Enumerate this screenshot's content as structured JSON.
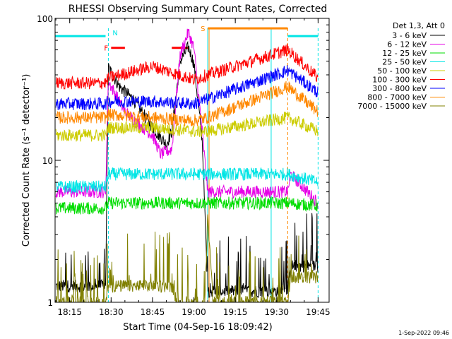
{
  "chart_data": {
    "type": "line",
    "title": "RHESSI Observing Summary Count Rates, Corrected",
    "xlabel": "Start Time (04-Sep-16 18:09:42)",
    "ylabel": "Corrected Count Rate (s⁻¹ detector⁻¹)",
    "yscale": "log",
    "ylim": [
      1,
      100
    ],
    "xlim": [
      "18:09:42",
      "19:49:00"
    ],
    "x_ticks": [
      "18:15",
      "18:30",
      "18:45",
      "19:00",
      "19:15",
      "19:30",
      "19:45"
    ],
    "y_ticks": [
      "1",
      "10",
      "100"
    ],
    "legend_header": "Det 1,3, Att 0",
    "legend_position": "top-right",
    "footer": "1-Sep-2022 09:46",
    "series": [
      {
        "name": "3 - 6 keV",
        "color": "#000000",
        "points": [
          [
            "18:10",
            1.3
          ],
          [
            "18:28",
            1.3
          ],
          [
            "18:29",
            45
          ],
          [
            "18:33",
            33
          ],
          [
            "18:38",
            27
          ],
          [
            "18:45",
            17
          ],
          [
            "18:50",
            13
          ],
          [
            "18:52",
            16
          ],
          [
            "18:55",
            50
          ],
          [
            "18:58",
            63
          ],
          [
            "19:00",
            48
          ],
          [
            "19:03",
            14
          ],
          [
            "19:05",
            1.2
          ],
          [
            "19:34",
            1.2
          ],
          [
            "19:35",
            1.8
          ],
          [
            "19:45",
            1.8
          ]
        ]
      },
      {
        "name": "6 - 12 keV",
        "color": "#e600e6",
        "points": [
          [
            "18:10",
            6
          ],
          [
            "18:28",
            6
          ],
          [
            "18:29",
            36
          ],
          [
            "18:35",
            22
          ],
          [
            "18:40",
            18
          ],
          [
            "18:45",
            15
          ],
          [
            "18:48",
            11
          ],
          [
            "18:52",
            12
          ],
          [
            "18:55",
            55
          ],
          [
            "18:58",
            80
          ],
          [
            "19:00",
            62
          ],
          [
            "19:03",
            16
          ],
          [
            "19:05",
            6
          ],
          [
            "19:34",
            6
          ],
          [
            "19:35",
            8
          ],
          [
            "19:45",
            5
          ]
        ]
      },
      {
        "name": "12 - 25 keV",
        "color": "#00dd00",
        "points": [
          [
            "18:10",
            4.6
          ],
          [
            "18:28",
            4.6
          ],
          [
            "18:29",
            5
          ],
          [
            "18:45",
            5
          ],
          [
            "19:00",
            5
          ],
          [
            "19:05",
            5
          ],
          [
            "19:34",
            5
          ],
          [
            "19:45",
            4.8
          ]
        ]
      },
      {
        "name": "25 - 50 keV",
        "color": "#00e5e5",
        "points": [
          [
            "18:10",
            6.5
          ],
          [
            "18:28",
            6.5
          ],
          [
            "18:29",
            8
          ],
          [
            "18:45",
            8
          ],
          [
            "19:00",
            8
          ],
          [
            "19:05",
            8
          ],
          [
            "19:34",
            8
          ],
          [
            "19:45",
            7
          ]
        ]
      },
      {
        "name": "50 - 100 keV",
        "color": "#cccc00",
        "points": [
          [
            "18:10",
            15
          ],
          [
            "18:28",
            15
          ],
          [
            "18:29",
            17
          ],
          [
            "18:45",
            17
          ],
          [
            "19:00",
            16
          ],
          [
            "19:05",
            16
          ],
          [
            "19:34",
            20
          ],
          [
            "19:45",
            16
          ]
        ]
      },
      {
        "name": "100 - 300 keV",
        "color": "#ff0000",
        "points": [
          [
            "18:10",
            35
          ],
          [
            "18:28",
            35
          ],
          [
            "18:29",
            38
          ],
          [
            "18:45",
            46
          ],
          [
            "19:00",
            37
          ],
          [
            "19:05",
            40
          ],
          [
            "19:34",
            60
          ],
          [
            "19:45",
            38
          ]
        ]
      },
      {
        "name": "300 - 800 keV",
        "color": "#0000ff",
        "points": [
          [
            "18:10",
            25
          ],
          [
            "18:28",
            25
          ],
          [
            "18:29",
            26
          ],
          [
            "18:45",
            26
          ],
          [
            "19:00",
            25
          ],
          [
            "19:05",
            27
          ],
          [
            "19:34",
            43
          ],
          [
            "19:45",
            30
          ]
        ]
      },
      {
        "name": "800 - 7000 keV",
        "color": "#ff8800",
        "points": [
          [
            "18:10",
            20
          ],
          [
            "18:28",
            20
          ],
          [
            "18:29",
            21
          ],
          [
            "18:45",
            20
          ],
          [
            "19:00",
            19
          ],
          [
            "19:05",
            20
          ],
          [
            "19:34",
            33
          ],
          [
            "19:45",
            22
          ]
        ]
      },
      {
        "name": "7000 - 15000 keV",
        "color": "#808000",
        "points": [
          [
            "18:10",
            1
          ],
          [
            "18:28",
            1
          ],
          [
            "18:29",
            1.3
          ],
          [
            "18:52",
            1.3
          ],
          [
            "18:54",
            1
          ],
          [
            "19:04",
            1
          ],
          [
            "19:05",
            4
          ],
          [
            "19:07",
            1
          ],
          [
            "19:34",
            1
          ],
          [
            "19:35",
            1.5
          ],
          [
            "19:45",
            1.5
          ]
        ]
      }
    ],
    "flags": [
      {
        "label": "",
        "color": "#00e5e5",
        "y": 75,
        "start": "18:09:42",
        "end": "18:28:00"
      },
      {
        "label": "",
        "color": "#00e5e5",
        "y": 75,
        "start": "19:34:00",
        "end": "19:45:00"
      },
      {
        "label": "F",
        "color": "#ff0000",
        "y": 62,
        "start": "18:30:00",
        "end": "18:35:00"
      },
      {
        "label": "",
        "color": "#ff0000",
        "y": 62,
        "start": "18:52:00",
        "end": "18:58:00"
      },
      {
        "label": "S",
        "color": "#ff8800",
        "y": 85,
        "start": "19:05:00",
        "end": "19:34:00"
      }
    ],
    "markers": [
      {
        "label": "N",
        "color": "#00e5e5",
        "time": "18:29:00",
        "style": "dashed"
      },
      {
        "label": "",
        "color": "#00e5e5",
        "time": "19:05:00",
        "style": "solid"
      },
      {
        "label": "",
        "color": "#00e5e5",
        "time": "19:28:00",
        "style": "solid"
      },
      {
        "label": "",
        "color": "#00e5e5",
        "time": "19:45:00",
        "style": "dashed"
      },
      {
        "label": "",
        "color": "#ff8800",
        "time": "19:05:30",
        "style": "solid"
      },
      {
        "label": "",
        "color": "#ff8800",
        "time": "19:34:00",
        "style": "dashed"
      }
    ]
  }
}
